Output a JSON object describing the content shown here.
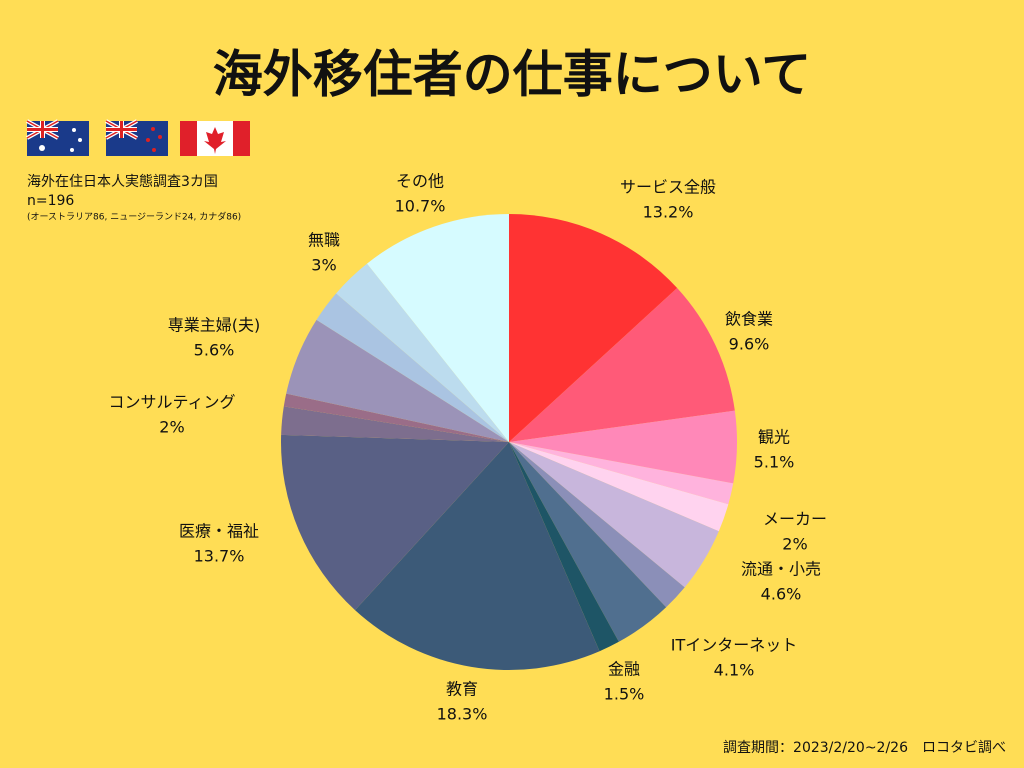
{
  "chart_data": {
    "type": "pie",
    "title": "海外移住者の仕事について",
    "survey": {
      "title": "海外在住日本人実態調査3カ国",
      "sample": "n=196",
      "breakdown": "(オーストラリア86, ニュージーランド24, カナダ86)"
    },
    "footer": "調査期間：2023/2/20~2/26　ロコタビ調べ",
    "categories": [
      "サービス全般",
      "飲食業",
      "観光",
      null,
      "メーカー",
      "流通・小売",
      null,
      "ITインターネット",
      "金融",
      "教育",
      "医療・福祉",
      "コンサルティング",
      null,
      "専業主婦(夫)",
      null,
      "無職",
      "その他"
    ],
    "values": [
      13.2,
      9.6,
      5.1,
      1.5,
      2,
      4.6,
      1.9,
      4.1,
      1.5,
      18.3,
      13.7,
      2,
      0.9,
      5.6,
      2.3,
      3,
      10.7
    ],
    "value_labels": [
      "13.2%",
      "9.6%",
      "5.1%",
      null,
      "2%",
      "4.6%",
      null,
      "4.1%",
      "1.5%",
      "18.3%",
      "13.7%",
      "2%",
      null,
      "5.6%",
      null,
      "3%",
      "10.7%"
    ],
    "colors": [
      "#ff3333",
      "#ff5a78",
      "#ff88b8",
      "#ffb3dd",
      "#ffd3ef",
      "#c8b6dc",
      "#8b8fb8",
      "#506f8f",
      "#1e5566",
      "#3c5a78",
      "#596085",
      "#7d6e8e",
      "#9a6d88",
      "#9b93b8",
      "#aac4e2",
      "#bcdcee",
      "#d6fbff"
    ]
  }
}
